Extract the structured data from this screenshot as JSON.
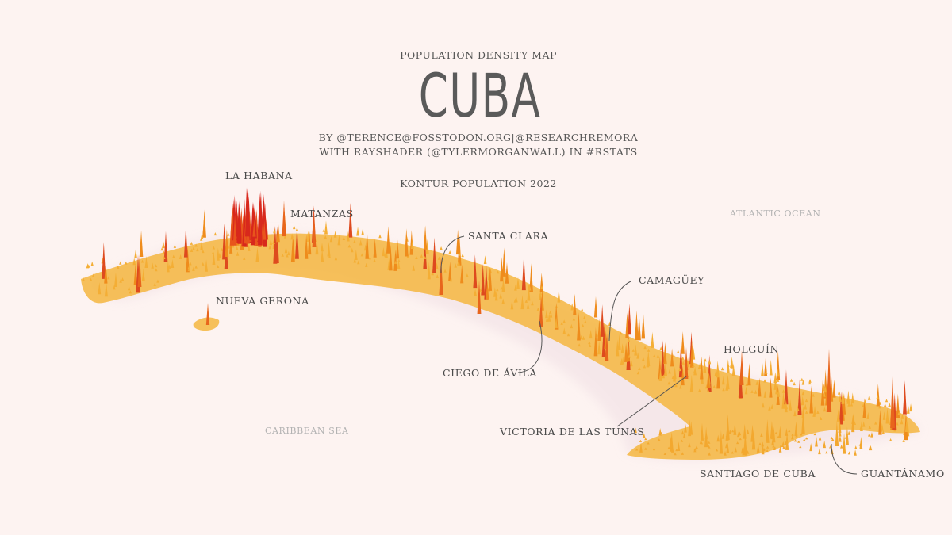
{
  "header": {
    "subtitle": "POPULATION DENSITY MAP",
    "title": "CUBA",
    "credit_line_1": "BY @TERENCE@FOSSTODON.ORG|@RESEARCHREMORA",
    "credit_line_2": "WITH RAYSHADER (@TYLERMORGANWALL) IN #RSTATS",
    "source": "KONTUR POPULATION 2022"
  },
  "cities": {
    "la_habana": "LA HABANA",
    "matanzas": "MATANZAS",
    "santa_clara": "SANTA CLARA",
    "camaguey": "CAMAGÜEY",
    "nueva_gerona": "NUEVA GERONA",
    "ciego_de_avila": "CIEGO DE ÁVILA",
    "holguin": "HOLGUÍN",
    "victoria_de_las_tunas": "VICTORIA DE LAS TUNAS",
    "santiago_de_cuba": "SANTIAGO DE CUBA",
    "guantanamo": "GUANTÁNAMO"
  },
  "water_bodies": {
    "atlantic": "ATLANTIC OCEAN",
    "caribbean": "CARIBBEAN SEA"
  },
  "colors": {
    "background": "#fdf3f1",
    "low_density": "#f7c04a",
    "mid_density": "#f29a1f",
    "high_density": "#d8281c",
    "text": "#4d4d4d",
    "sea_text": "#b3b3b3"
  }
}
